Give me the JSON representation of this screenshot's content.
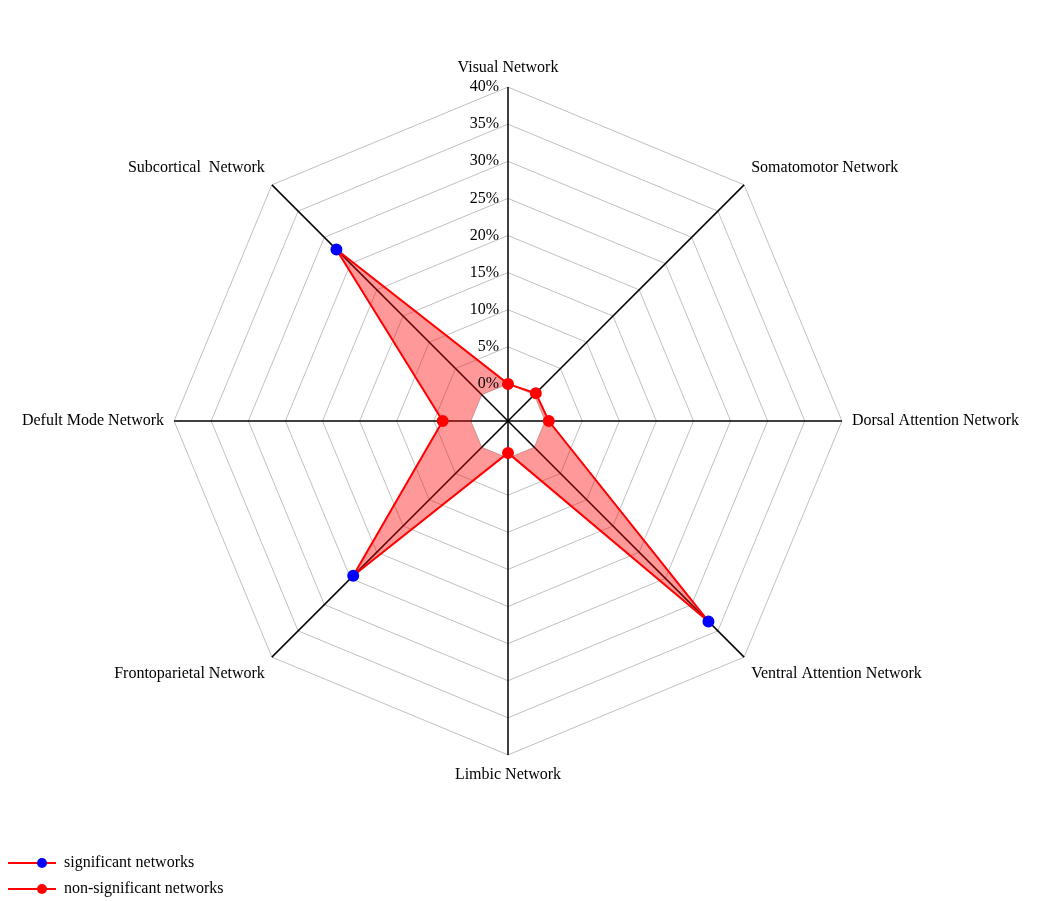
{
  "chart_data": {
    "type": "radar",
    "categories": [
      "Visual Network",
      "Somatomotor Network",
      "Dorsal Attention Network",
      "Ventral Attention Network",
      "Limbic Network",
      "Frontoparietal Network",
      "Defult Mode Network",
      "Subcortical  Network"
    ],
    "values": [
      0,
      0.3,
      0.5,
      33.2,
      -0.7,
      24.5,
      3.8,
      27.7
    ],
    "color": "#ff0000",
    "colors": [
      "#ff0000",
      "#ff0000",
      "#ff0000",
      "#0000ff",
      "#ff0000",
      "#0000ff",
      "#ff0000",
      "#0000ff"
    ],
    "ylim": [
      -5,
      40
    ],
    "yticks": [
      {
        "value": 0,
        "label": "0%"
      },
      {
        "value": 5,
        "label": "5%"
      },
      {
        "value": 10,
        "label": "10%"
      },
      {
        "value": 15,
        "label": "15%"
      },
      {
        "value": 20,
        "label": "20%"
      },
      {
        "value": 25,
        "label": "25%"
      },
      {
        "value": 30,
        "label": "30%"
      },
      {
        "value": 35,
        "label": "35%"
      },
      {
        "value": 40,
        "label": "40%"
      }
    ],
    "grid": true,
    "legend": "lower left",
    "legend_entries": [
      {
        "name": "significant networks",
        "color": "#0000ff"
      },
      {
        "name": "non-significant networks",
        "color": "#ff0000"
      }
    ]
  }
}
